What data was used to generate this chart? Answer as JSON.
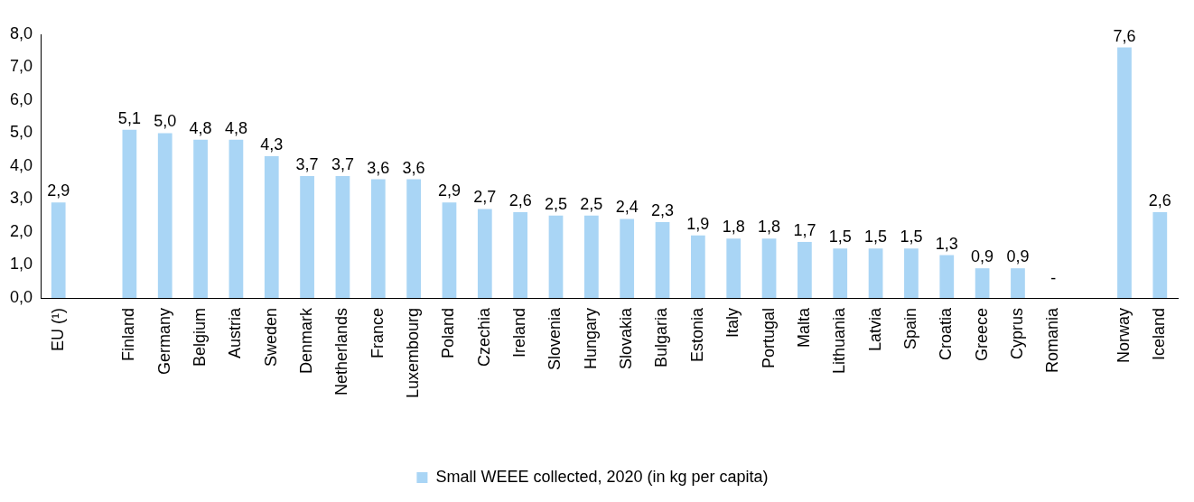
{
  "chart_data": {
    "type": "bar",
    "categories": [
      "EU (¹)",
      null,
      "Finland",
      "Germany",
      "Belgium",
      "Austria",
      "Sweden",
      "Denmark",
      "Netherlands",
      "France",
      "Luxembourg",
      "Poland",
      "Czechia",
      "Ireland",
      "Slovenia",
      "Hungary",
      "Slovakia",
      "Bulgaria",
      "Estonia",
      "Italy",
      "Portugal",
      "Malta",
      "Lithuania",
      "Latvia",
      "Spain",
      "Croatia",
      "Greece",
      "Cyprus",
      "Romania",
      null,
      "Norway",
      "Iceland"
    ],
    "series": [
      {
        "name": "Small WEEE collected, 2020 (in kg per capita)",
        "color": "#a9d5f5",
        "values": [
          2.9,
          null,
          5.1,
          5.0,
          4.8,
          4.8,
          4.3,
          3.7,
          3.7,
          3.6,
          3.6,
          2.9,
          2.7,
          2.6,
          2.5,
          2.5,
          2.4,
          2.3,
          1.9,
          1.8,
          1.8,
          1.7,
          1.5,
          1.5,
          1.5,
          1.3,
          0.9,
          0.9,
          null,
          null,
          7.6,
          2.6
        ],
        "value_labels": [
          "2,9",
          null,
          "5,1",
          "5,0",
          "4,8",
          "4,8",
          "4,3",
          "3,7",
          "3,7",
          "3,6",
          "3,6",
          "2,9",
          "2,7",
          "2,6",
          "2,5",
          "2,5",
          "2,4",
          "2,3",
          "1,9",
          "1,8",
          "1,8",
          "1,7",
          "1,5",
          "1,5",
          "1,5",
          "1,3",
          "0,9",
          "0,9",
          "-",
          null,
          "7,6",
          "2,6"
        ]
      }
    ],
    "ylim": [
      0,
      8
    ],
    "yticks": [
      {
        "value": 0,
        "label": "0,0"
      },
      {
        "value": 1,
        "label": "1,0"
      },
      {
        "value": 2,
        "label": "2,0"
      },
      {
        "value": 3,
        "label": "3,0"
      },
      {
        "value": 4,
        "label": "4,0"
      },
      {
        "value": 5,
        "label": "5,0"
      },
      {
        "value": 6,
        "label": "6,0"
      },
      {
        "value": 7,
        "label": "7,0"
      },
      {
        "value": 8,
        "label": "8,0"
      }
    ],
    "grid": false,
    "legend": "bottom"
  }
}
